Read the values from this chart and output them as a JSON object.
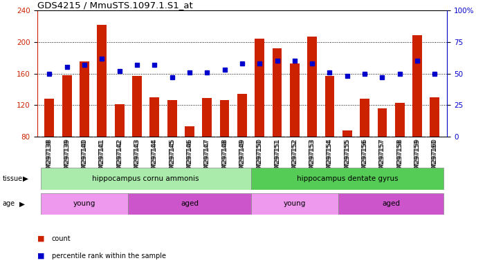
{
  "title": "GDS4215 / MmuSTS.1097.1.S1_at",
  "samples": [
    "GSM297138",
    "GSM297139",
    "GSM297140",
    "GSM297141",
    "GSM297142",
    "GSM297143",
    "GSM297144",
    "GSM297145",
    "GSM297146",
    "GSM297147",
    "GSM297148",
    "GSM297149",
    "GSM297150",
    "GSM297151",
    "GSM297152",
    "GSM297153",
    "GSM297154",
    "GSM297155",
    "GSM297156",
    "GSM297157",
    "GSM297158",
    "GSM297159",
    "GSM297160"
  ],
  "counts": [
    128,
    158,
    175,
    222,
    121,
    157,
    130,
    126,
    93,
    129,
    126,
    134,
    204,
    192,
    173,
    207,
    157,
    88,
    128,
    116,
    123,
    209,
    130
  ],
  "percentiles": [
    50,
    55,
    57,
    62,
    52,
    57,
    57,
    47,
    51,
    51,
    53,
    58,
    58,
    60,
    60,
    58,
    51,
    48,
    50,
    47,
    50,
    60,
    50
  ],
  "ymin": 80,
  "ymax": 240,
  "yticks": [
    80,
    120,
    160,
    200,
    240
  ],
  "right_yticks": [
    0,
    25,
    50,
    75,
    100
  ],
  "bar_color": "#cc2200",
  "dot_color": "#0000cc",
  "tissue_groups": [
    {
      "label": "hippocampus cornu ammonis",
      "start": 0,
      "end": 12,
      "color": "#aaeaaa"
    },
    {
      "label": "hippocampus dentate gyrus",
      "start": 12,
      "end": 23,
      "color": "#55cc55"
    }
  ],
  "age_groups": [
    {
      "label": "young",
      "start": 0,
      "end": 5,
      "color": "#ee99ee"
    },
    {
      "label": "aged",
      "start": 5,
      "end": 12,
      "color": "#cc55cc"
    },
    {
      "label": "young",
      "start": 12,
      "end": 17,
      "color": "#ee99ee"
    },
    {
      "label": "aged",
      "start": 17,
      "end": 23,
      "color": "#cc55cc"
    }
  ],
  "xtick_bg": "#d8d8d8",
  "legend_count_label": "count",
  "legend_pct_label": "percentile rank within the sample",
  "background_color": "#ffffff",
  "grid_color": "#000000",
  "title_fontsize": 9.5,
  "tick_fontsize": 6.5,
  "label_fontsize": 8,
  "annot_fontsize": 7.5
}
